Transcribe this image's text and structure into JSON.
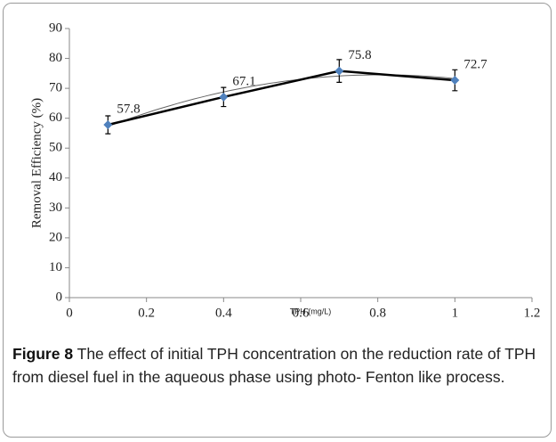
{
  "chart_data": {
    "type": "line",
    "x_label": "TPH (mg/L)",
    "y_label": "Removal Efficiency (%)",
    "x": [
      0.1,
      0.4,
      0.7,
      1
    ],
    "series": [
      {
        "color": "#000000",
        "marker_color": "#4f81bd",
        "values": [
          57.8,
          67.1,
          75.8,
          72.7
        ],
        "errors": [
          3,
          3.2,
          3.8,
          3.5
        ]
      }
    ],
    "xlim": [
      0,
      1.2
    ],
    "xticks": [
      0,
      0.2,
      0.4,
      0.6,
      0.8,
      1,
      1.2
    ],
    "ylim": [
      0,
      90
    ],
    "yticks": [
      0,
      10,
      20,
      30,
      40,
      50,
      60,
      70,
      80,
      90
    ],
    "trendline": true
  },
  "caption": {
    "label": "Figure 8",
    "text": "The effect of initial TPH concentration on the reduction rate of TPH from diesel fuel in the aqueous phase using photo- Fenton like process."
  }
}
